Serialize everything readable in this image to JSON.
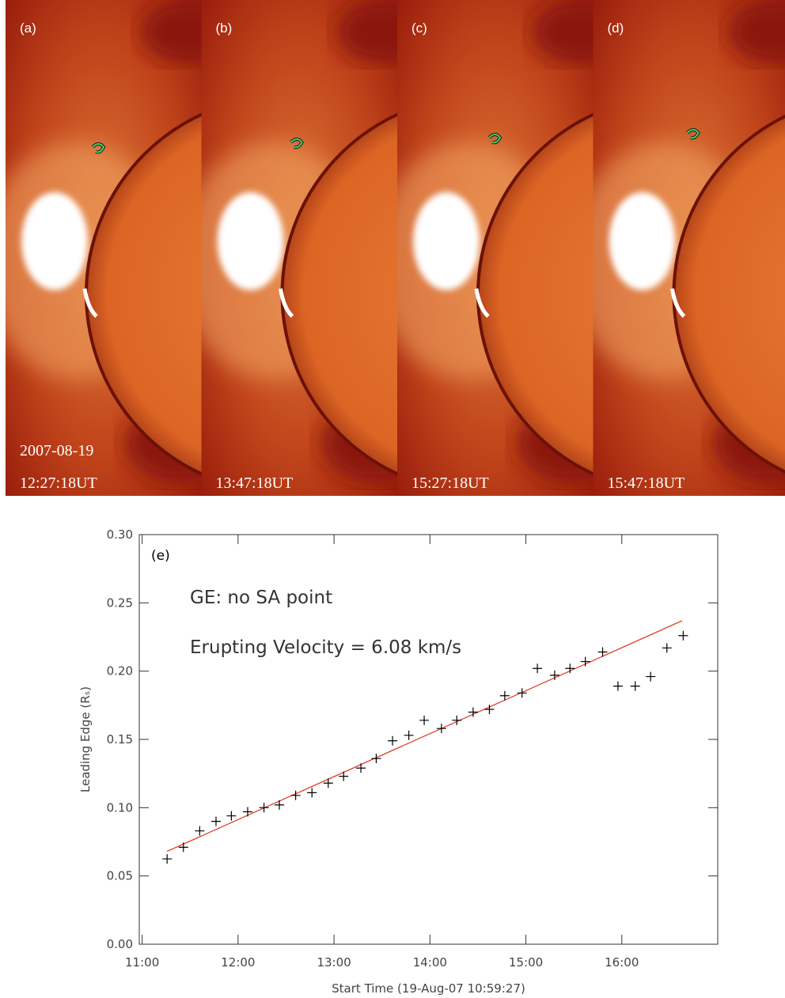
{
  "panels": [
    {
      "label": "(a)",
      "time": "12:27:18UT"
    },
    {
      "label": "(b)",
      "time": "13:47:18UT"
    },
    {
      "label": "(c)",
      "time": "15:27:18UT"
    },
    {
      "label": "(d)",
      "time": "15:47:18UT"
    }
  ],
  "image_date": "2007-08-19",
  "chart_data": {
    "type": "scatter",
    "panel_label": "(e)",
    "annotations": [
      "GE: no SA point",
      "Erupting Velocity = 6.08 km/s"
    ],
    "x_label": "Start Time (19-Aug-07 10:59:27)",
    "y_label": "Leading Edge (Rₛ)",
    "xlim": [
      10.97,
      17.0
    ],
    "xticks": [
      {
        "value": 11,
        "label": "11:00"
      },
      {
        "value": 12,
        "label": "12:00"
      },
      {
        "value": 13,
        "label": "13:00"
      },
      {
        "value": 14,
        "label": "14:00"
      },
      {
        "value": 15,
        "label": "15:00"
      },
      {
        "value": 16,
        "label": "16:00"
      }
    ],
    "ylim": [
      0,
      0.3
    ],
    "yticks": [
      {
        "value": 0,
        "label": "0.00"
      },
      0.05,
      {
        "value": 0.1,
        "label": "0.10"
      },
      0.15,
      {
        "value": 0.2,
        "label": "0.20"
      },
      0.25,
      {
        "value": 0.3,
        "label": "0.30"
      }
    ],
    "points": {
      "color": "#000000",
      "x": [
        11.26,
        11.43,
        11.6,
        11.77,
        11.93,
        12.1,
        12.27,
        12.43,
        12.6,
        12.77,
        12.94,
        13.1,
        13.28,
        13.44,
        13.61,
        13.78,
        13.94,
        14.12,
        14.28,
        14.45,
        14.62,
        14.78,
        14.96,
        15.12,
        15.3,
        15.46,
        15.62,
        15.8,
        15.96,
        16.14,
        16.3,
        16.47,
        16.64
      ],
      "values": [
        0.0625,
        0.071,
        0.083,
        0.09,
        0.094,
        0.097,
        0.1,
        0.102,
        0.109,
        0.111,
        0.118,
        0.123,
        0.129,
        0.136,
        0.149,
        0.153,
        0.164,
        0.158,
        0.164,
        0.17,
        0.172,
        0.182,
        0.184,
        0.202,
        0.197,
        0.202,
        0.207,
        0.214,
        0.189,
        0.189,
        0.196,
        0.217,
        0.226
      ]
    },
    "fit": {
      "color": "#e0301e",
      "x": [
        11.26,
        16.63
      ],
      "values": [
        0.068,
        0.237
      ]
    }
  }
}
